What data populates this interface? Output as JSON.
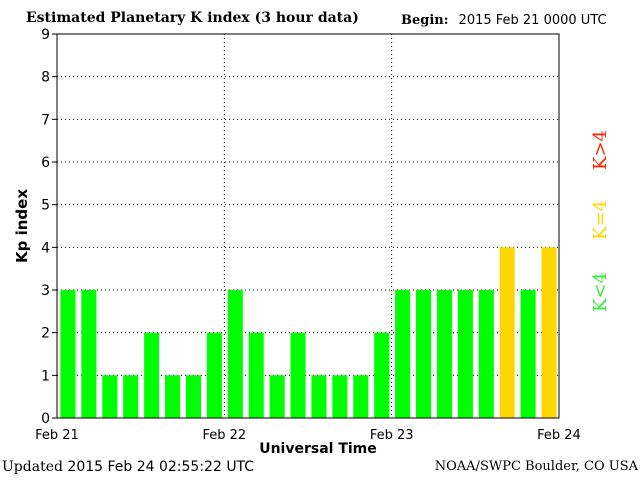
{
  "header": {
    "title": "Estimated Planetary K index (3 hour data)",
    "begin_label": "Begin:",
    "begin_value": "2015 Feb 21 0000 UTC"
  },
  "footer": {
    "updated_label": "Updated",
    "updated_value": "2015 Feb 24 02:55:22 UTC",
    "source": "NOAA/SWPC Boulder, CO USA"
  },
  "legend": {
    "low": "K<4",
    "equal": "K=4",
    "high": "K>4"
  },
  "colors": {
    "low": "#00ff00",
    "equal": "#ffd700",
    "high": "#ff0000",
    "grid": "#000000"
  },
  "chart_data": {
    "type": "bar",
    "title": "Estimated Planetary K index (3 hour data)",
    "xlabel": "Universal Time",
    "ylabel": "Kp index",
    "ylim": [
      0,
      9
    ],
    "yticks": [
      0,
      1,
      2,
      3,
      4,
      5,
      6,
      7,
      8,
      9
    ],
    "xtick_labels": [
      "Feb 21",
      "Feb 22",
      "Feb 23",
      "Feb 24"
    ],
    "grid": true,
    "series": [
      {
        "values": [
          3,
          3,
          1,
          1,
          2,
          1,
          1,
          2,
          3,
          2,
          1,
          2,
          1,
          1,
          1,
          2,
          3,
          3,
          3,
          3,
          3,
          4,
          3,
          4
        ]
      }
    ]
  }
}
